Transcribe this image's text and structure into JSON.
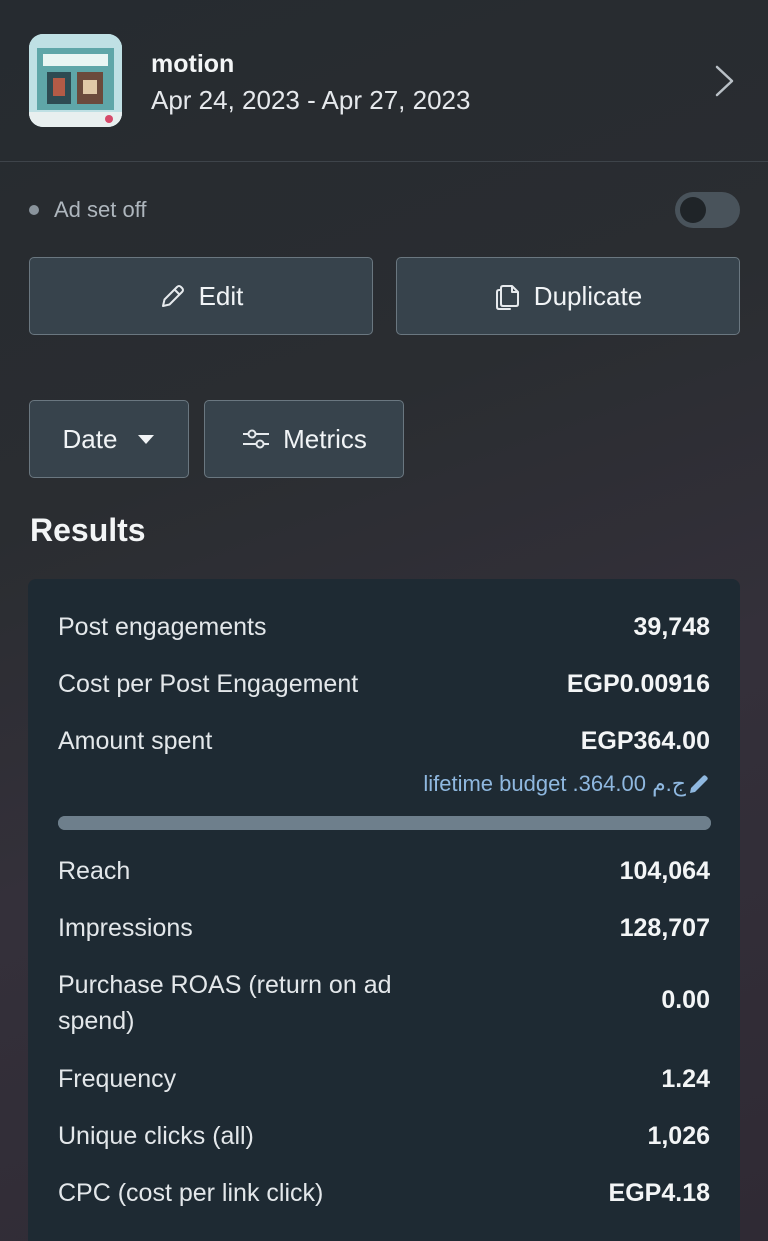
{
  "header": {
    "ad_name": "motion",
    "date_range": "Apr 24, 2023 - Apr 27, 2023"
  },
  "status": {
    "text": "Ad set off",
    "toggle_on": false
  },
  "actions": {
    "edit_label": "Edit",
    "duplicate_label": "Duplicate"
  },
  "filters": {
    "date_label": "Date",
    "metrics_label": "Metrics"
  },
  "results": {
    "title": "Results",
    "budget_text": "lifetime budget .ج.م 364.00",
    "budget_progress_percent": 100,
    "rows": [
      {
        "label": "Post engagements",
        "value": "39,748"
      },
      {
        "label": "Cost per Post Engagement",
        "value": "EGP0.00916"
      },
      {
        "label": "Amount spent",
        "value": "EGP364.00"
      },
      {
        "label": "Reach",
        "value": "104,064"
      },
      {
        "label": "Impressions",
        "value": "128,707"
      },
      {
        "label": "Purchase ROAS (return on ad spend)",
        "value": "0.00"
      },
      {
        "label": "Frequency",
        "value": "1.24"
      },
      {
        "label": "Unique clicks (all)",
        "value": "1,026"
      },
      {
        "label": "CPC (cost per link click)",
        "value": "EGP4.18"
      }
    ]
  },
  "icons": {
    "edit": "pencil-icon",
    "duplicate": "copy-icon",
    "date": "caret-down-icon",
    "metrics": "sliders-icon",
    "budget": "pencil-icon",
    "header": "chevron-right-icon"
  },
  "colors": {
    "card_bg": "#1e2a33",
    "button_bg": "#37434c",
    "link": "#8fb8e0"
  }
}
